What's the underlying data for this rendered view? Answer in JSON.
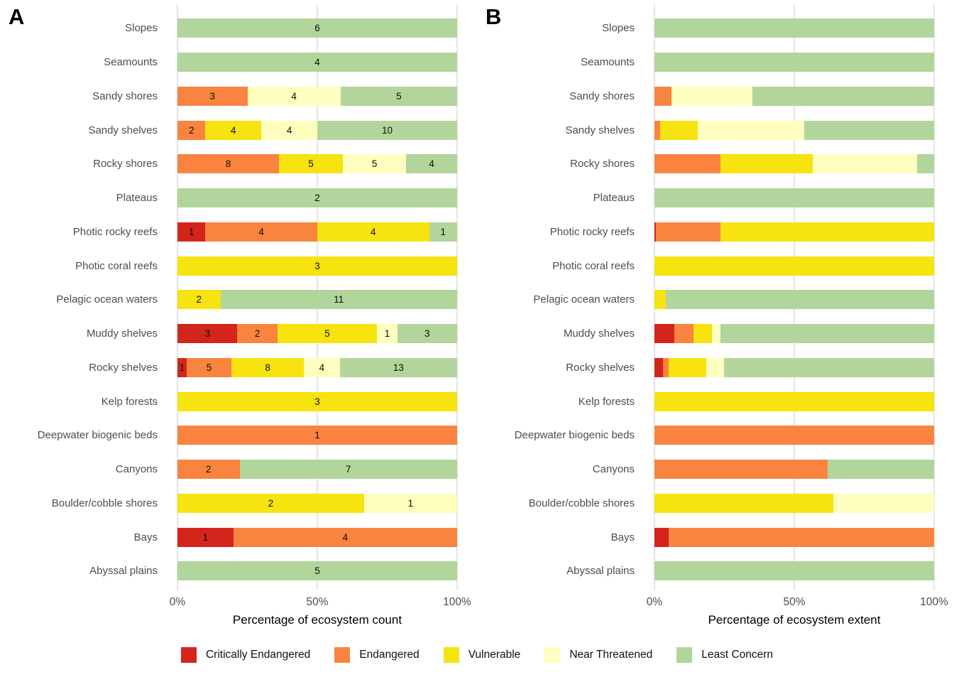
{
  "chart_data": {
    "type": "bar",
    "orientation": "horizontal-stacked",
    "grid": "vertical-major-only",
    "x_range": [
      0,
      100
    ],
    "categories": [
      "Slopes",
      "Seamounts",
      "Sandy shores",
      "Sandy shelves",
      "Rocky shores",
      "Plateaus",
      "Photic rocky reefs",
      "Photic coral reefs",
      "Pelagic ocean waters",
      "Muddy shelves",
      "Rocky shelves",
      "Kelp forests",
      "Deepwater biogenic beds",
      "Canyons",
      "Boulder/cobble shores",
      "Bays",
      "Abyssal plains"
    ],
    "legend": [
      {
        "code": "CR",
        "label": "Critically Endangered",
        "color": "#d4251c"
      },
      {
        "code": "EN",
        "label": "Endangered",
        "color": "#f8843f"
      },
      {
        "code": "VU",
        "label": "Vulnerable",
        "color": "#f6e30f"
      },
      {
        "code": "NT",
        "label": "Near Threatened",
        "color": "#feffbf"
      },
      {
        "code": "LC",
        "label": "Least Concern",
        "color": "#b2d59b"
      }
    ],
    "panels": [
      {
        "letter": "A",
        "x_ticks": [
          "0%",
          "50%",
          "100%"
        ],
        "x_title": "Percentage of ecosystem count",
        "value_type": "count",
        "rows": [
          {
            "label": "Slopes",
            "segments": [
              {
                "code": "LC",
                "count": 6,
                "pct": 100
              }
            ]
          },
          {
            "label": "Seamounts",
            "segments": [
              {
                "code": "LC",
                "count": 4,
                "pct": 100
              }
            ]
          },
          {
            "label": "Sandy shores",
            "segments": [
              {
                "code": "EN",
                "count": 3,
                "pct": 25
              },
              {
                "code": "NT",
                "count": 4,
                "pct": 33.33
              },
              {
                "code": "LC",
                "count": 5,
                "pct": 41.67
              }
            ]
          },
          {
            "label": "Sandy shelves",
            "segments": [
              {
                "code": "EN",
                "count": 2,
                "pct": 10
              },
              {
                "code": "VU",
                "count": 4,
                "pct": 20
              },
              {
                "code": "NT",
                "count": 4,
                "pct": 20
              },
              {
                "code": "LC",
                "count": 10,
                "pct": 50
              }
            ]
          },
          {
            "label": "Rocky shores",
            "segments": [
              {
                "code": "EN",
                "count": 8,
                "pct": 36.36
              },
              {
                "code": "VU",
                "count": 5,
                "pct": 22.73
              },
              {
                "code": "NT",
                "count": 5,
                "pct": 22.73
              },
              {
                "code": "LC",
                "count": 4,
                "pct": 18.18
              }
            ]
          },
          {
            "label": "Plateaus",
            "segments": [
              {
                "code": "LC",
                "count": 2,
                "pct": 100
              }
            ]
          },
          {
            "label": "Photic rocky reefs",
            "segments": [
              {
                "code": "CR",
                "count": 1,
                "pct": 10
              },
              {
                "code": "EN",
                "count": 4,
                "pct": 40
              },
              {
                "code": "VU",
                "count": 4,
                "pct": 40
              },
              {
                "code": "LC",
                "count": 1,
                "pct": 10
              }
            ]
          },
          {
            "label": "Photic coral reefs",
            "segments": [
              {
                "code": "VU",
                "count": 3,
                "pct": 100
              }
            ]
          },
          {
            "label": "Pelagic ocean waters",
            "segments": [
              {
                "code": "VU",
                "count": 2,
                "pct": 15.38
              },
              {
                "code": "LC",
                "count": 11,
                "pct": 84.62
              }
            ]
          },
          {
            "label": "Muddy shelves",
            "segments": [
              {
                "code": "CR",
                "count": 3,
                "pct": 21.43
              },
              {
                "code": "EN",
                "count": 2,
                "pct": 14.29
              },
              {
                "code": "VU",
                "count": 5,
                "pct": 35.71
              },
              {
                "code": "NT",
                "count": 1,
                "pct": 7.14
              },
              {
                "code": "LC",
                "count": 3,
                "pct": 21.43
              }
            ]
          },
          {
            "label": "Rocky shelves",
            "segments": [
              {
                "code": "CR",
                "count": 1,
                "pct": 3.23
              },
              {
                "code": "EN",
                "count": 5,
                "pct": 16.13
              },
              {
                "code": "VU",
                "count": 8,
                "pct": 25.81
              },
              {
                "code": "NT",
                "count": 4,
                "pct": 12.9
              },
              {
                "code": "LC",
                "count": 13,
                "pct": 41.94
              }
            ]
          },
          {
            "label": "Kelp forests",
            "segments": [
              {
                "code": "VU",
                "count": 3,
                "pct": 100
              }
            ]
          },
          {
            "label": "Deepwater biogenic beds",
            "segments": [
              {
                "code": "EN",
                "count": 1,
                "pct": 100
              }
            ]
          },
          {
            "label": "Canyons",
            "segments": [
              {
                "code": "EN",
                "count": 2,
                "pct": 22.22
              },
              {
                "code": "LC",
                "count": 7,
                "pct": 77.78
              }
            ]
          },
          {
            "label": "Boulder/cobble shores",
            "segments": [
              {
                "code": "VU",
                "count": 2,
                "pct": 66.67
              },
              {
                "code": "NT",
                "count": 1,
                "pct": 33.33
              }
            ]
          },
          {
            "label": "Bays",
            "segments": [
              {
                "code": "CR",
                "count": 1,
                "pct": 20
              },
              {
                "code": "EN",
                "count": 4,
                "pct": 80
              }
            ]
          },
          {
            "label": "Abyssal plains",
            "segments": [
              {
                "code": "LC",
                "count": 5,
                "pct": 100
              }
            ]
          }
        ]
      },
      {
        "letter": "B",
        "x_ticks": [
          "0%",
          "50%",
          "100%"
        ],
        "x_title": "Percentage of ecosystem extent",
        "value_type": "percent_extent",
        "rows": [
          {
            "label": "Slopes",
            "segments": [
              {
                "code": "LC",
                "pct": 100
              }
            ]
          },
          {
            "label": "Seamounts",
            "segments": [
              {
                "code": "LC",
                "pct": 100
              }
            ]
          },
          {
            "label": "Sandy shores",
            "segments": [
              {
                "code": "EN",
                "pct": 6
              },
              {
                "code": "NT",
                "pct": 29
              },
              {
                "code": "LC",
                "pct": 65
              }
            ]
          },
          {
            "label": "Sandy shelves",
            "segments": [
              {
                "code": "EN",
                "pct": 2
              },
              {
                "code": "VU",
                "pct": 13.5
              },
              {
                "code": "NT",
                "pct": 38
              },
              {
                "code": "LC",
                "pct": 46.5
              }
            ]
          },
          {
            "label": "Rocky shores",
            "segments": [
              {
                "code": "EN",
                "pct": 23.5
              },
              {
                "code": "VU",
                "pct": 33
              },
              {
                "code": "NT",
                "pct": 37.5
              },
              {
                "code": "LC",
                "pct": 6
              }
            ]
          },
          {
            "label": "Plateaus",
            "segments": [
              {
                "code": "LC",
                "pct": 100
              }
            ]
          },
          {
            "label": "Photic rocky reefs",
            "segments": [
              {
                "code": "CR",
                "pct": 0.6
              },
              {
                "code": "EN",
                "pct": 23
              },
              {
                "code": "VU",
                "pct": 76.4
              }
            ]
          },
          {
            "label": "Photic coral reefs",
            "segments": [
              {
                "code": "VU",
                "pct": 100
              }
            ]
          },
          {
            "label": "Pelagic ocean waters",
            "segments": [
              {
                "code": "VU",
                "pct": 4
              },
              {
                "code": "LC",
                "pct": 96
              }
            ]
          },
          {
            "label": "Muddy shelves",
            "segments": [
              {
                "code": "CR",
                "pct": 7
              },
              {
                "code": "EN",
                "pct": 7
              },
              {
                "code": "VU",
                "pct": 6.5
              },
              {
                "code": "NT",
                "pct": 3
              },
              {
                "code": "LC",
                "pct": 76.5
              }
            ]
          },
          {
            "label": "Rocky shelves",
            "segments": [
              {
                "code": "CR",
                "pct": 3
              },
              {
                "code": "EN",
                "pct": 2
              },
              {
                "code": "VU",
                "pct": 13.5
              },
              {
                "code": "NT",
                "pct": 6.5
              },
              {
                "code": "LC",
                "pct": 75
              }
            ]
          },
          {
            "label": "Kelp forests",
            "segments": [
              {
                "code": "VU",
                "pct": 100
              }
            ]
          },
          {
            "label": "Deepwater biogenic beds",
            "segments": [
              {
                "code": "EN",
                "pct": 100
              }
            ]
          },
          {
            "label": "Canyons",
            "segments": [
              {
                "code": "EN",
                "pct": 62
              },
              {
                "code": "LC",
                "pct": 38
              }
            ]
          },
          {
            "label": "Boulder/cobble shores",
            "segments": [
              {
                "code": "VU",
                "pct": 64
              },
              {
                "code": "NT",
                "pct": 36
              }
            ]
          },
          {
            "label": "Bays",
            "segments": [
              {
                "code": "CR",
                "pct": 5
              },
              {
                "code": "EN",
                "pct": 95
              }
            ]
          },
          {
            "label": "Abyssal plains",
            "segments": [
              {
                "code": "LC",
                "pct": 100
              }
            ]
          }
        ]
      }
    ]
  },
  "colors": {
    "gridline": "#e5e5e5",
    "row_label_text": "#4d4d4d",
    "tick_text": "#4d4d4d",
    "axis_title_text": "#000000",
    "segment_value_text": "#0d0d0d"
  }
}
